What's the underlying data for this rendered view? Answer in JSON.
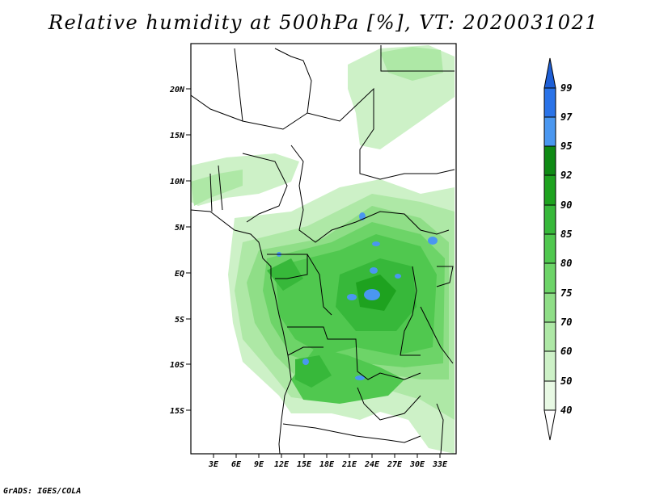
{
  "title": "Relative humidity at 500hPa [%], VT: 2020031021",
  "credit": "GrADS: IGES/COLA",
  "map": {
    "lat_labels": [
      "20N",
      "15N",
      "10N",
      "5N",
      "EQ",
      "5S",
      "10S",
      "15S"
    ],
    "lon_labels": [
      "3E",
      "6E",
      "9E",
      "12E",
      "15E",
      "18E",
      "21E",
      "24E",
      "27E",
      "30E",
      "33E"
    ]
  },
  "colorbar": {
    "labels": [
      "99",
      "97",
      "95",
      "92",
      "90",
      "85",
      "80",
      "75",
      "70",
      "60",
      "50",
      "40"
    ],
    "colors": [
      "#1e5fd6",
      "#2a73e8",
      "#4a97f0",
      "#0f8a14",
      "#1ea21f",
      "#37b83a",
      "#50c84f",
      "#6dd468",
      "#8fde87",
      "#aee8a6",
      "#cdf1c7",
      "#e8f9e4",
      "#ffffff"
    ]
  }
}
